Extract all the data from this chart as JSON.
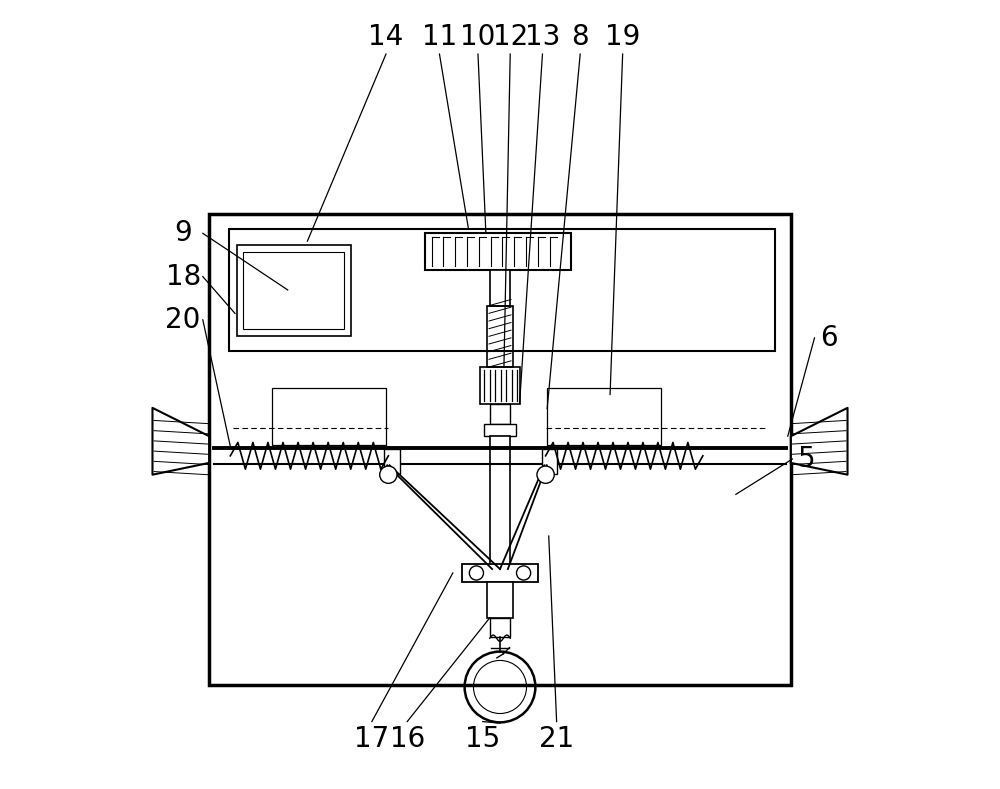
{
  "bg_color": "#ffffff",
  "line_color": "#000000",
  "line_width": 1.5,
  "thin_lw": 0.8,
  "fig_width": 10.0,
  "fig_height": 7.89,
  "label_fontsize": 20
}
